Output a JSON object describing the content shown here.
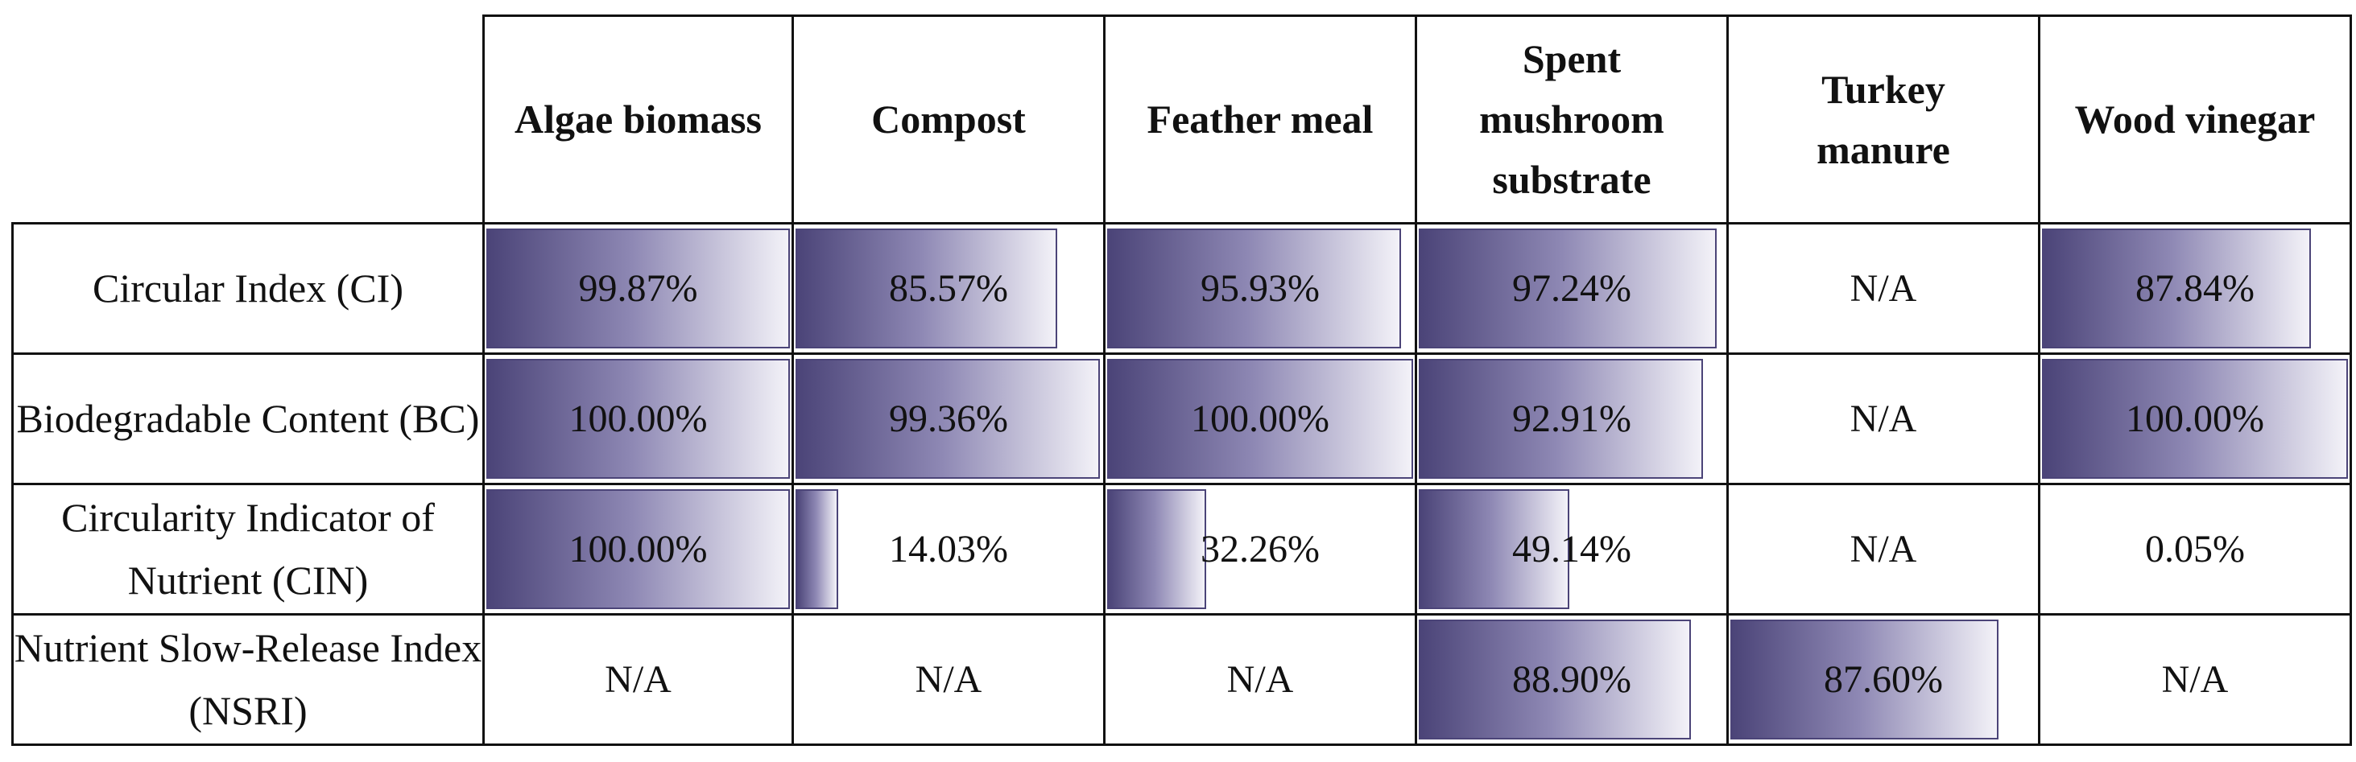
{
  "columns": [
    "Algae biomass",
    "Compost",
    "Feather meal",
    "Spent mushroom substrate",
    "Turkey manure",
    "Wood vinegar"
  ],
  "rows": [
    {
      "label": "Circular Index (CI)",
      "cells": [
        {
          "text": "99.87%",
          "fraction": 0.9987
        },
        {
          "text": "85.57%",
          "fraction": 0.8557
        },
        {
          "text": "95.93%",
          "fraction": 0.9593
        },
        {
          "text": "97.24%",
          "fraction": 0.9724
        },
        {
          "text": "N/A",
          "fraction": null
        },
        {
          "text": "87.84%",
          "fraction": 0.8784
        }
      ]
    },
    {
      "label": "Biodegradable Content (BC)",
      "cells": [
        {
          "text": "100.00%",
          "fraction": 1.0
        },
        {
          "text": "99.36%",
          "fraction": 0.9936
        },
        {
          "text": "100.00%",
          "fraction": 1.0
        },
        {
          "text": "92.91%",
          "fraction": 0.9291
        },
        {
          "text": "N/A",
          "fraction": null
        },
        {
          "text": "100.00%",
          "fraction": 1.0
        }
      ]
    },
    {
      "label": "Circularity Indicator of Nutrient (CIN)",
      "cells": [
        {
          "text": "100.00%",
          "fraction": 1.0
        },
        {
          "text": "14.03%",
          "fraction": 0.1403
        },
        {
          "text": "32.26%",
          "fraction": 0.3226
        },
        {
          "text": "49.14%",
          "fraction": 0.4914
        },
        {
          "text": "N/A",
          "fraction": null
        },
        {
          "text": "0.05%",
          "fraction": 0.0005
        }
      ]
    },
    {
      "label": "Nutrient Slow-Release Index (NSRI)",
      "cells": [
        {
          "text": "N/A",
          "fraction": null
        },
        {
          "text": "N/A",
          "fraction": null
        },
        {
          "text": "N/A",
          "fraction": null
        },
        {
          "text": "88.90%",
          "fraction": 0.889
        },
        {
          "text": "87.60%",
          "fraction": 0.876
        },
        {
          "text": "N/A",
          "fraction": null
        }
      ]
    }
  ],
  "colors": {
    "bar_dark": "#4b4478",
    "bar_light": "#f3f2f8",
    "grid": "#111111"
  }
}
